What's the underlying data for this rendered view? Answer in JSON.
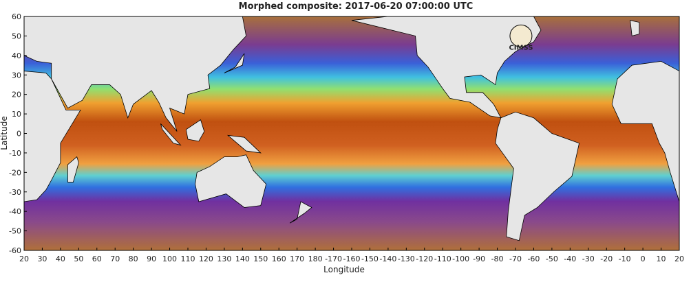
{
  "chart_data": {
    "type": "map",
    "title": "Morphed composite: 2017-06-20 07:00:00 UTC",
    "xlabel": "Longitude",
    "ylabel": "Latitude",
    "logo": "CIMSS",
    "xlim": [
      20,
      380
    ],
    "ylim": [
      -60,
      60
    ],
    "xticks": [
      20,
      30,
      40,
      50,
      60,
      70,
      80,
      90,
      100,
      110,
      120,
      130,
      140,
      150,
      160,
      170,
      180,
      {
        "value": 190,
        "label": "-170"
      },
      {
        "value": 200,
        "label": "-160"
      },
      {
        "value": 210,
        "label": "-150"
      },
      {
        "value": 220,
        "label": "-140"
      },
      {
        "value": 230,
        "label": "-130"
      },
      {
        "value": 240,
        "label": "-120"
      },
      {
        "value": 250,
        "label": "-110"
      },
      {
        "value": 260,
        "label": "-100"
      },
      {
        "value": 270,
        "label": "-90"
      },
      {
        "value": 280,
        "label": "-80"
      },
      {
        "value": 290,
        "label": "-70"
      },
      {
        "value": 300,
        "label": "-60"
      },
      {
        "value": 310,
        "label": "-50"
      },
      {
        "value": 320,
        "label": "-40"
      },
      {
        "value": 330,
        "label": "-30"
      },
      {
        "value": 340,
        "label": "-20"
      },
      {
        "value": 350,
        "label": "-10"
      },
      {
        "value": 360,
        "label": "0"
      },
      {
        "value": 370,
        "label": "10"
      },
      {
        "value": 380,
        "label": "20"
      }
    ],
    "yticks": [
      -60,
      -50,
      -40,
      -30,
      -20,
      -10,
      0,
      10,
      20,
      30,
      40,
      50,
      60
    ]
  }
}
